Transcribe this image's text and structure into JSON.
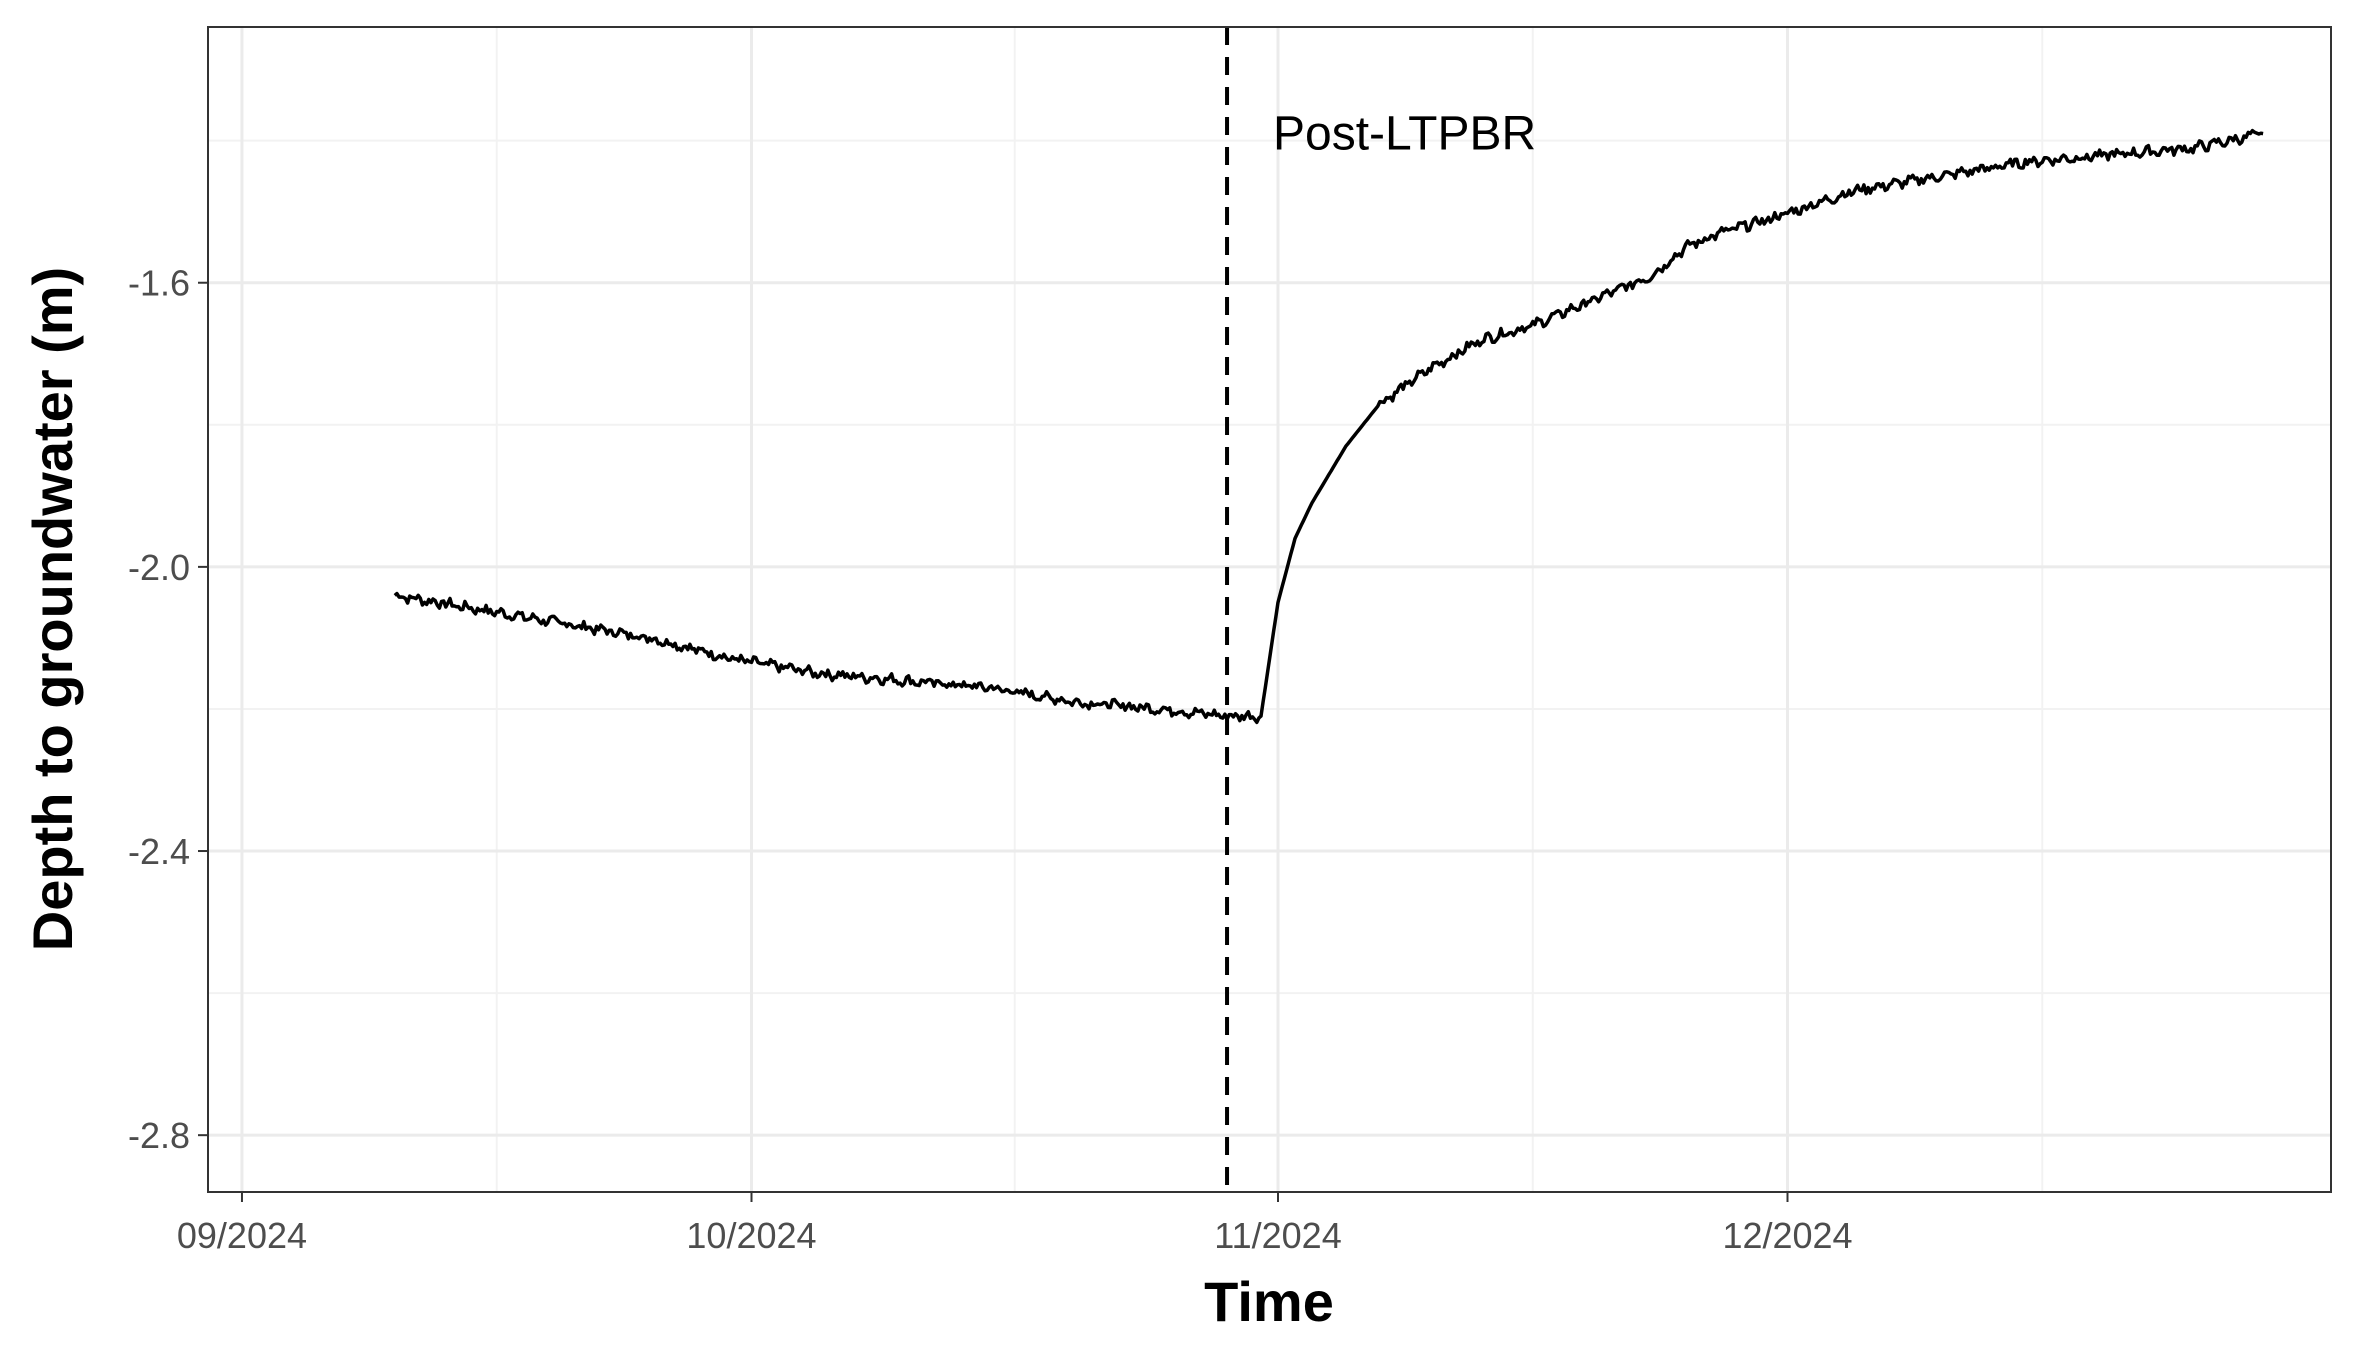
{
  "chart_data": {
    "type": "line",
    "title": "",
    "xlabel": "Time",
    "ylabel": "Depth to groundwater (m)",
    "x_type": "date",
    "xlim": [
      "2024-08-30",
      "2025-01-02"
    ],
    "ylim": [
      -2.88,
      -1.24
    ],
    "x_ticks": [
      {
        "value": "2024-09-01",
        "label": "09/2024"
      },
      {
        "value": "2024-10-01",
        "label": "10/2024"
      },
      {
        "value": "2024-11-01",
        "label": "11/2024"
      },
      {
        "value": "2024-12-01",
        "label": "12/2024"
      }
    ],
    "y_ticks": [
      {
        "value": -1.6,
        "label": "-1.6"
      },
      {
        "value": -2.0,
        "label": "-2.0"
      },
      {
        "value": -2.4,
        "label": "-2.4"
      },
      {
        "value": -2.8,
        "label": "-2.8"
      }
    ],
    "grid": true,
    "legend": "none",
    "series": [
      {
        "color": "#000000",
        "x": [
          "2024-09-10",
          "2024-09-15",
          "2024-09-20",
          "2024-09-25",
          "2024-09-30",
          "2024-10-05",
          "2024-10-10",
          "2024-10-15",
          "2024-10-20",
          "2024-10-25",
          "2024-10-29",
          "2024-10-31",
          "2024-11-01",
          "2024-11-02",
          "2024-11-03",
          "2024-11-04",
          "2024-11-05",
          "2024-11-07",
          "2024-11-10",
          "2024-11-13",
          "2024-11-16",
          "2024-11-20",
          "2024-11-23",
          "2024-11-25",
          "2024-11-27",
          "2024-11-30",
          "2024-12-05",
          "2024-12-10",
          "2024-12-15",
          "2024-12-20",
          "2024-12-25",
          "2024-12-29"
        ],
        "y": [
          -2.04,
          -2.06,
          -2.08,
          -2.1,
          -2.13,
          -2.15,
          -2.16,
          -2.17,
          -2.19,
          -2.2,
          -2.21,
          -2.21,
          -2.05,
          -1.96,
          -1.91,
          -1.87,
          -1.83,
          -1.77,
          -1.72,
          -1.68,
          -1.66,
          -1.62,
          -1.59,
          -1.55,
          -1.53,
          -1.51,
          -1.47,
          -1.45,
          -1.43,
          -1.42,
          -1.41,
          -1.39
        ]
      }
    ],
    "vlines": [
      {
        "x": "2024-10-29",
        "style": "dashed",
        "color": "#000000"
      }
    ],
    "annotations": [
      {
        "x": "2024-10-31",
        "y": -1.39,
        "text": "Post-LTPBR"
      }
    ]
  }
}
